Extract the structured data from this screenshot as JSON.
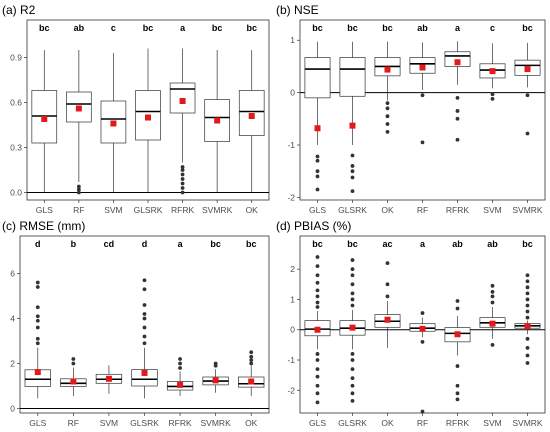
{
  "chart_data": [
    {
      "type": "box",
      "title": "(a) R2",
      "ylim": [
        -0.05,
        1.05
      ],
      "yticks": [
        0.0,
        0.3,
        0.6,
        0.9
      ],
      "ytick_labels": [
        "0.0",
        "0.3",
        "0.6",
        "0.9"
      ],
      "reference_line": 0,
      "categories": [
        "GLS",
        "RF",
        "SVM",
        "GLSRK",
        "RFRK",
        "SVMRK",
        "OK"
      ],
      "letters": [
        "bc",
        "ab",
        "c",
        "bc",
        "a",
        "bc",
        "bc"
      ],
      "boxes": [
        {
          "min": 0.0,
          "q1": 0.33,
          "median": 0.51,
          "q3": 0.68,
          "max": 0.95,
          "mean": 0.49,
          "outliers": []
        },
        {
          "min": 0.07,
          "q1": 0.47,
          "median": 0.59,
          "q3": 0.67,
          "max": 0.95,
          "mean": 0.56,
          "outliers": [
            0.0,
            0.02,
            0.04
          ]
        },
        {
          "min": 0.0,
          "q1": 0.33,
          "median": 0.49,
          "q3": 0.61,
          "max": 0.93,
          "mean": 0.46,
          "outliers": []
        },
        {
          "min": 0.0,
          "q1": 0.35,
          "median": 0.54,
          "q3": 0.68,
          "max": 0.96,
          "mean": 0.5,
          "outliers": []
        },
        {
          "min": 0.2,
          "q1": 0.53,
          "median": 0.69,
          "q3": 0.73,
          "max": 0.96,
          "mean": 0.61,
          "outliers": [
            0.0,
            0.03,
            0.06,
            0.09,
            0.12,
            0.15,
            0.17
          ]
        },
        {
          "min": 0.0,
          "q1": 0.34,
          "median": 0.5,
          "q3": 0.62,
          "max": 0.95,
          "mean": 0.48,
          "outliers": []
        },
        {
          "min": 0.0,
          "q1": 0.38,
          "median": 0.54,
          "q3": 0.68,
          "max": 0.95,
          "mean": 0.51,
          "outliers": []
        }
      ]
    },
    {
      "type": "box",
      "title": "(b) NSE",
      "ylim": [
        -2.05,
        1.1
      ],
      "yticks": [
        -2,
        -1,
        0,
        1
      ],
      "ytick_labels": [
        "-2",
        "-1",
        "0",
        "1"
      ],
      "reference_line": 0,
      "categories": [
        "GLS",
        "GLSRK",
        "OK",
        "RF",
        "RFRK",
        "SVM",
        "SVMRK"
      ],
      "letters": [
        "bc",
        "bc",
        "bc",
        "ab",
        "a",
        "c",
        "bc"
      ],
      "boxes": [
        {
          "min": -1.0,
          "q1": -0.1,
          "median": 0.45,
          "q3": 0.67,
          "max": 0.97,
          "mean": -0.68,
          "outliers": [
            -1.22,
            -1.3,
            -1.5,
            -1.6,
            -1.85
          ]
        },
        {
          "min": -1.0,
          "q1": -0.07,
          "median": 0.45,
          "q3": 0.67,
          "max": 0.97,
          "mean": -0.63,
          "outliers": [
            -1.2,
            -1.4,
            -1.5,
            -1.62,
            -1.88
          ]
        },
        {
          "min": -0.15,
          "q1": 0.32,
          "median": 0.5,
          "q3": 0.67,
          "max": 0.97,
          "mean": 0.44,
          "outliers": [
            -0.2,
            -0.3,
            -0.45,
            -0.6,
            -0.75
          ]
        },
        {
          "min": 0.05,
          "q1": 0.37,
          "median": 0.55,
          "q3": 0.67,
          "max": 0.96,
          "mean": 0.48,
          "outliers": [
            -0.05,
            -0.95
          ]
        },
        {
          "min": 0.15,
          "q1": 0.5,
          "median": 0.7,
          "q3": 0.78,
          "max": 0.98,
          "mean": 0.58,
          "outliers": [
            -0.1,
            -0.35,
            -0.5,
            -0.9
          ]
        },
        {
          "min": 0.08,
          "q1": 0.28,
          "median": 0.43,
          "q3": 0.55,
          "max": 0.94,
          "mean": 0.41,
          "outliers": [
            -0.03,
            -0.12
          ]
        },
        {
          "min": 0.1,
          "q1": 0.33,
          "median": 0.52,
          "q3": 0.62,
          "max": 0.95,
          "mean": 0.45,
          "outliers": [
            -0.05,
            -0.78
          ]
        }
      ]
    },
    {
      "type": "box",
      "title": "(c) RMSE (mm)",
      "ylim": [
        -0.2,
        7.0
      ],
      "yticks": [
        0,
        2,
        4,
        6
      ],
      "ytick_labels": [
        "0",
        "2",
        "4",
        "6"
      ],
      "reference_line": 0,
      "categories": [
        "GLS",
        "RF",
        "SVM",
        "GLSRK",
        "RFRK",
        "SVMRK",
        "OK"
      ],
      "letters": [
        "d",
        "b",
        "cd",
        "d",
        "a",
        "bc",
        "bc"
      ],
      "boxes": [
        {
          "min": 0.45,
          "q1": 0.98,
          "median": 1.3,
          "q3": 1.72,
          "max": 2.7,
          "mean": 1.62,
          "outliers": [
            2.9,
            3.1,
            3.6,
            3.9,
            4.1,
            4.5,
            5.4,
            5.6
          ]
        },
        {
          "min": 0.55,
          "q1": 0.98,
          "median": 1.12,
          "q3": 1.32,
          "max": 1.82,
          "mean": 1.2,
          "outliers": [
            2.0,
            2.2
          ]
        },
        {
          "min": 0.65,
          "q1": 1.12,
          "median": 1.3,
          "q3": 1.52,
          "max": 1.92,
          "mean": 1.32,
          "outliers": []
        },
        {
          "min": 0.45,
          "q1": 1.0,
          "median": 1.3,
          "q3": 1.73,
          "max": 2.7,
          "mean": 1.58,
          "outliers": [
            2.9,
            3.2,
            3.6,
            4.0,
            4.2,
            4.6,
            5.3,
            5.7
          ]
        },
        {
          "min": 0.55,
          "q1": 0.82,
          "median": 0.98,
          "q3": 1.2,
          "max": 1.65,
          "mean": 1.05,
          "outliers": [
            1.8,
            2.0,
            2.2
          ]
        },
        {
          "min": 0.7,
          "q1": 1.05,
          "median": 1.22,
          "q3": 1.4,
          "max": 1.75,
          "mean": 1.25,
          "outliers": [
            1.9,
            2.0
          ]
        },
        {
          "min": 0.55,
          "q1": 0.95,
          "median": 1.1,
          "q3": 1.4,
          "max": 1.9,
          "mean": 1.2,
          "outliers": [
            2.0,
            2.15,
            2.3,
            2.5
          ]
        }
      ]
    },
    {
      "type": "box",
      "title": "(d) PBIAS (%)",
      "ylim": [
        -2.75,
        2.6
      ],
      "yticks": [
        -2,
        -1,
        0,
        1,
        2
      ],
      "ytick_labels": [
        "-2",
        "-1",
        "0",
        "1",
        "2"
      ],
      "reference_line": 0,
      "categories": [
        "GLS",
        "GLSRK",
        "OK",
        "RF",
        "RFRK",
        "SVM",
        "SVMRK"
      ],
      "letters": [
        "bc",
        "bc",
        "ac",
        "a",
        "ab",
        "ab",
        "bc"
      ],
      "boxes": [
        {
          "min": -0.65,
          "q1": -0.2,
          "median": 0.02,
          "q3": 0.3,
          "max": 0.62,
          "mean": 0.0,
          "outliers": [
            0.75,
            0.9,
            1.1,
            1.3,
            1.55,
            1.8,
            2.1,
            2.4,
            -0.8,
            -1.0,
            -1.3,
            -1.55,
            -1.85,
            -2.1,
            -2.4
          ]
        },
        {
          "min": -0.65,
          "q1": -0.18,
          "median": 0.05,
          "q3": 0.3,
          "max": 0.65,
          "mean": 0.07,
          "outliers": [
            0.8,
            1.0,
            1.2,
            1.5,
            1.8,
            2.0,
            2.3,
            -0.8,
            -1.0,
            -1.3,
            -1.6,
            -1.85,
            -2.1,
            -2.35
          ]
        },
        {
          "min": -0.6,
          "q1": 0.08,
          "median": 0.28,
          "q3": 0.5,
          "max": 0.95,
          "mean": 0.33,
          "outliers": [
            1.1,
            1.5,
            2.2
          ]
        },
        {
          "min": -0.25,
          "q1": -0.05,
          "median": 0.05,
          "q3": 0.2,
          "max": 0.4,
          "mean": 0.03,
          "outliers": [
            0.55,
            -0.4,
            -2.7
          ]
        },
        {
          "min": -0.85,
          "q1": -0.4,
          "median": -0.12,
          "q3": 0.07,
          "max": 0.45,
          "mean": -0.15,
          "outliers": [
            0.7,
            0.95,
            -1.2,
            -1.85,
            -2.1,
            -2.3
          ]
        },
        {
          "min": -0.3,
          "q1": 0.08,
          "median": 0.23,
          "q3": 0.4,
          "max": 0.75,
          "mean": 0.2,
          "outliers": [
            0.9,
            1.1,
            1.25,
            1.45,
            -0.5
          ]
        },
        {
          "min": -0.15,
          "q1": 0.05,
          "median": 0.13,
          "q3": 0.2,
          "max": 0.3,
          "mean": 0.12,
          "outliers": [
            0.4,
            0.6,
            0.8,
            1.0,
            1.2,
            1.4,
            1.6,
            1.8,
            -0.3,
            -0.6,
            -0.85,
            -1.1
          ]
        }
      ]
    }
  ],
  "colors": {
    "box_fill": "#ffffff",
    "box_stroke": "#333333",
    "whisker": "#333333",
    "outlier": "#333333",
    "mean_marker": "#e31a1c",
    "reference_line": "#000000",
    "panel_border": "#333333",
    "grid": "#ebebeb"
  }
}
